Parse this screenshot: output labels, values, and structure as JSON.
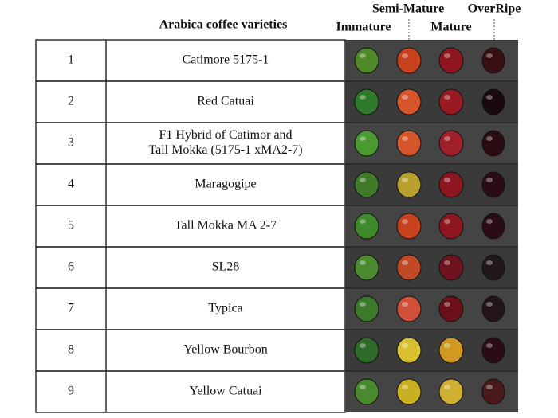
{
  "header": {
    "title": "Arabica coffee varieties"
  },
  "stages": [
    "Immature",
    "Semi-Mature",
    "Mature",
    "OverRipe"
  ],
  "table": {
    "rows": [
      {
        "number": 1,
        "name": [
          "Catimore 5175-1"
        ]
      },
      {
        "number": 2,
        "name": [
          "Red Catuai"
        ]
      },
      {
        "number": 3,
        "name": [
          "F1 Hybrid of Catimor and",
          "Tall Mokka (5175-1 xMA2-7)"
        ]
      },
      {
        "number": 4,
        "name": [
          "Maragogipe"
        ]
      },
      {
        "number": 5,
        "name": [
          "Tall Mokka MA 2-7"
        ]
      },
      {
        "number": 6,
        "name": [
          "SL28"
        ]
      },
      {
        "number": 7,
        "name": [
          "Typica"
        ]
      },
      {
        "number": 8,
        "name": [
          "Yellow Bourbon"
        ]
      },
      {
        "number": 9,
        "name": [
          "Yellow Catuai"
        ]
      }
    ]
  }
}
